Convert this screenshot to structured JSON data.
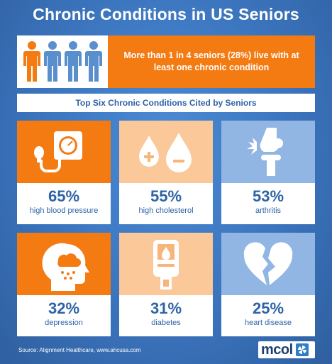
{
  "title": "Chronic Conditions in US Seniors",
  "banner": {
    "text": "More than 1 in 4 seniors (28%) live with at least one chronic condition",
    "colors": {
      "highlight": "#f47a12",
      "others": "#5a8fce"
    }
  },
  "subtitle": "Top Six Chronic Conditions Cited by Seniors",
  "conditions": [
    {
      "percent": "65%",
      "label": "high blood pressure",
      "icon": "blood-pressure-gauge-icon",
      "color": "#f47a12"
    },
    {
      "percent": "55%",
      "label": "high cholesterol",
      "icon": "cholesterol-drops-icon",
      "color": "#fbc89a"
    },
    {
      "percent": "53%",
      "label": "arthritis",
      "icon": "knee-joint-icon",
      "color": "#92b6e3"
    },
    {
      "percent": "32%",
      "label": "depression",
      "icon": "head-with-raincloud-icon",
      "color": "#f47a12"
    },
    {
      "percent": "31%",
      "label": "diabetes",
      "icon": "glucose-meter-icon",
      "color": "#fbc89a"
    },
    {
      "percent": "25%",
      "label": "heart disease",
      "icon": "broken-heart-icon",
      "color": "#92b6e3"
    }
  ],
  "source": "Source:  Alignment Healthcare, www.ahcusa.com",
  "logo": {
    "text": "mcol"
  },
  "colors": {
    "background": "#3f7ac3",
    "text_blue": "#2e63a6"
  }
}
